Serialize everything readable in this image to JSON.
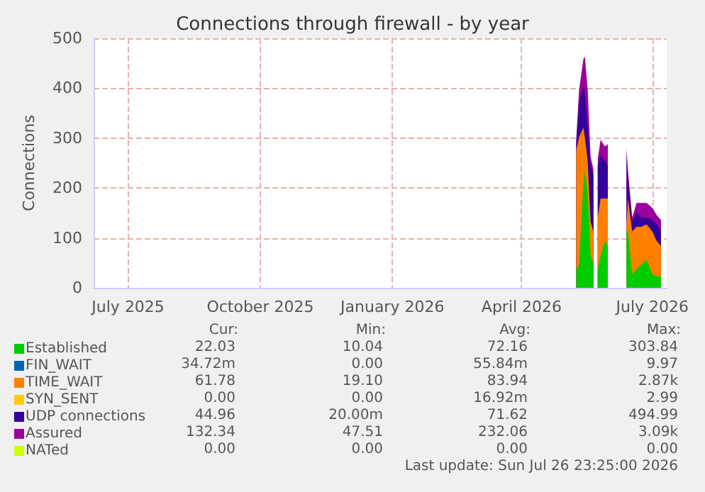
{
  "chart_data": {
    "type": "area",
    "title": "Connections through firewall - by year",
    "ylabel": "Connections",
    "stacked": true,
    "grid": true,
    "legend": "bottom left",
    "x": [
      "2026-05-24",
      "2026-05-26",
      "2026-05-29",
      "2026-05-30",
      "2026-06-01",
      "2026-06-03",
      "2026-06-05",
      "2026-06-06",
      "2026-06-08",
      "2026-06-10",
      "2026-06-13",
      "2026-06-15",
      "2026-06-20",
      "2026-06-28",
      "2026-06-29",
      "2026-07-02",
      "2026-07-05",
      "2026-07-08",
      "2026-07-12",
      "2026-07-16",
      "2026-07-19",
      "2026-07-22"
    ],
    "xlim": [
      "2025-06-22",
      "2026-07-26"
    ],
    "xticks": [
      {
        "value": "2025-07-16",
        "label": "July 2025"
      },
      {
        "value": "2025-10-16",
        "label": "October 2025"
      },
      {
        "value": "2026-01-16",
        "label": "January 2026"
      },
      {
        "value": "2026-04-16",
        "label": "April 2026"
      },
      {
        "value": "2026-07-16",
        "label": "July 2026"
      }
    ],
    "ylim": [
      0,
      500
    ],
    "yticks": [
      0,
      100,
      200,
      300,
      400,
      500
    ],
    "series": [
      {
        "name": "Established",
        "color": "#00cc00",
        "values": [
          37,
          46,
          207,
          236,
          188,
          65,
          46,
          null,
          37,
          65,
          94,
          84,
          null,
          113,
          113,
          27,
          37,
          46,
          56,
          27,
          23,
          23
        ]
      },
      {
        "name": "FIN_WAIT",
        "color": "#0066b3",
        "values": [
          null,
          null,
          null,
          null,
          null,
          null,
          null,
          null,
          null,
          null,
          null,
          null,
          null,
          null,
          null,
          null,
          null,
          null,
          null,
          null,
          null,
          null
        ]
      },
      {
        "name": "TIME_WAIT",
        "color": "#ff8000",
        "values": [
          237,
          256,
          114,
          66,
          66,
          67,
          67,
          null,
          104,
          114,
          85,
          95,
          null,
          10,
          66,
          86,
          85,
          76,
          71,
          86,
          71,
          61
        ]
      },
      {
        "name": "SYN_SENT",
        "color": "#ffcc00",
        "values": [
          null,
          null,
          null,
          null,
          null,
          null,
          null,
          null,
          null,
          null,
          null,
          null,
          null,
          null,
          null,
          null,
          null,
          null,
          null,
          null,
          null,
          null
        ]
      },
      {
        "name": "UDP connections",
        "color": "#330099",
        "values": [
          14,
          66,
          85,
          85,
          67,
          113,
          113,
          null,
          104,
          85,
          76,
          66,
          null,
          141,
          38,
          19,
          29,
          19,
          14,
          23,
          33,
          33
        ]
      },
      {
        "name": "Assured",
        "color": "#990099",
        "values": [
          9,
          29,
          52,
          76,
          76,
          19,
          10,
          null,
          14,
          33,
          28,
          43,
          null,
          17,
          19,
          9,
          19,
          29,
          29,
          24,
          19,
          19
        ]
      },
      {
        "name": "NATed",
        "color": "#ccff00",
        "values": [
          null,
          null,
          null,
          null,
          null,
          null,
          null,
          null,
          null,
          null,
          null,
          null,
          null,
          null,
          null,
          null,
          null,
          null,
          null,
          null,
          null,
          null
        ]
      }
    ],
    "annotations": [
      "Cur:",
      "Min:",
      "Avg:",
      "Max:",
      "22.03",
      "10.04",
      "72.16",
      "303.84",
      "34.72m",
      "0.00",
      "55.84m",
      "9.97",
      "61.78",
      "19.10",
      "83.94",
      "2.87k",
      "0.00",
      "0.00",
      "16.92m",
      "2.99",
      "44.96",
      "20.00m",
      "71.62",
      "494.99",
      "132.34",
      "47.51",
      "232.06",
      "3.09k",
      "0.00",
      "0.00",
      "0.00",
      "0.00",
      "Last update: Sun Jul 26 23:25:00 2026"
    ]
  }
}
